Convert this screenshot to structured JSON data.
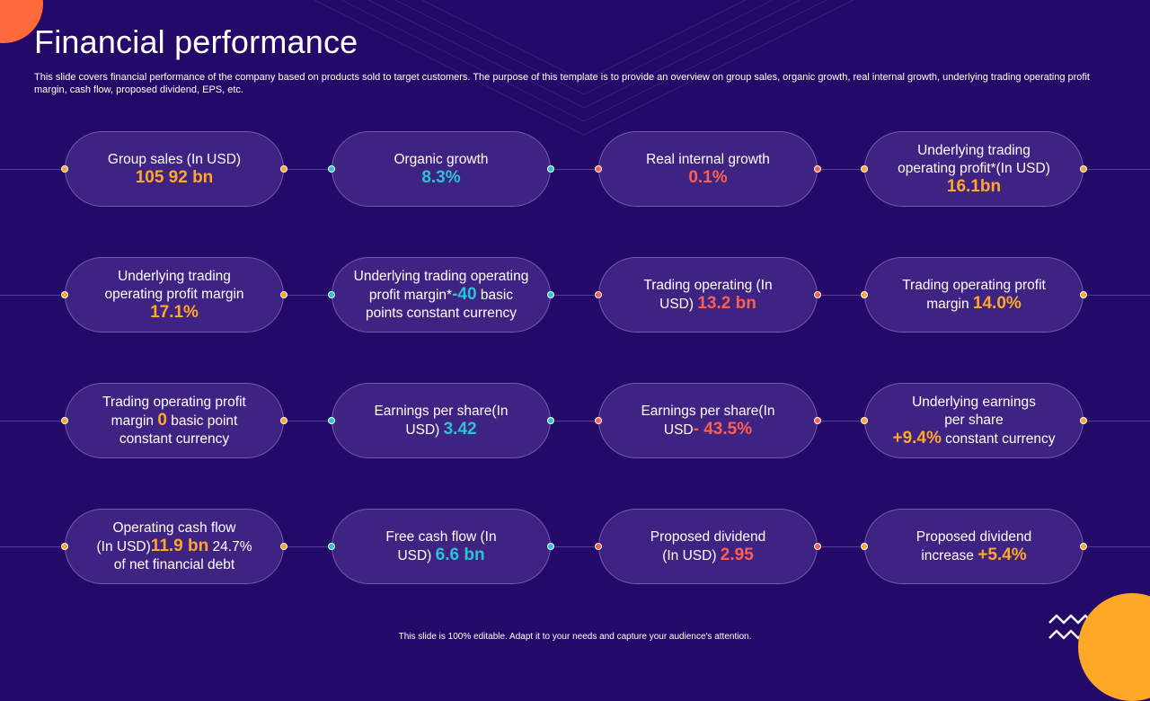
{
  "header": {
    "title": "Financial performance",
    "subtitle": "This slide covers financial performance of the company based on products sold to target customers. The purpose of this template is to provide an overview on group sales, organic growth, real internal growth, underlying trading operating profit margin, cash flow, proposed dividend, EPS, etc."
  },
  "colors": {
    "background": "#240a68",
    "card": "#3f2382",
    "orange": "#ffa726",
    "teal": "#29c4d4",
    "red": "#ff5e4d"
  },
  "cards": [
    {
      "l1": "Group sales (In USD)",
      "value": "105 92 bn"
    },
    {
      "l1": "Organic growth",
      "value": "8.3%"
    },
    {
      "l1": "Real internal growth",
      "value": "0.1%"
    },
    {
      "l1": "Underlying trading",
      "l2": "operating profit*(In USD)",
      "value": "16.1bn"
    },
    {
      "l1": "Underlying trading",
      "l2": "operating profit margin",
      "value": "17.1%"
    },
    {
      "l1": "Underlying trading operating",
      "pre": "profit margin*",
      "value": "-40",
      "post": " basic",
      "l3": "points constant currency"
    },
    {
      "l1": "Trading operating (In",
      "pre": "USD) ",
      "value": "13.2 bn"
    },
    {
      "l1": "Trading operating profit",
      "pre": "margin ",
      "value": "14.0%"
    },
    {
      "l1": "Trading operating profit",
      "pre": "margin ",
      "value": "0",
      "post": " basic point",
      "l3": "constant currency"
    },
    {
      "l1": "Earnings per share(In",
      "pre": "USD) ",
      "value": "3.42"
    },
    {
      "l1": "Earnings per share(In",
      "pre": "USD",
      "value": "- 43.5%"
    },
    {
      "l1": "Underlying earnings",
      "l2": "per share",
      "value": "+9.4%",
      "post": "  constant currency"
    },
    {
      "l1": "Operating cash flow",
      "pre": "(In USD)",
      "value": "11.9 bn",
      "post": " 24.7%",
      "l3": "of net financial debt"
    },
    {
      "l1": "Free cash flow (In",
      "pre": "USD) ",
      "value": "6.6 bn"
    },
    {
      "l1": "Proposed dividend",
      "pre": "(In USD) ",
      "value": "2.95"
    },
    {
      "l1": "Proposed dividend",
      "pre": "increase ",
      "value": "+5.4%"
    }
  ],
  "footer": {
    "text": "This slide is 100% editable. Adapt it to your needs and capture your audience's attention."
  }
}
